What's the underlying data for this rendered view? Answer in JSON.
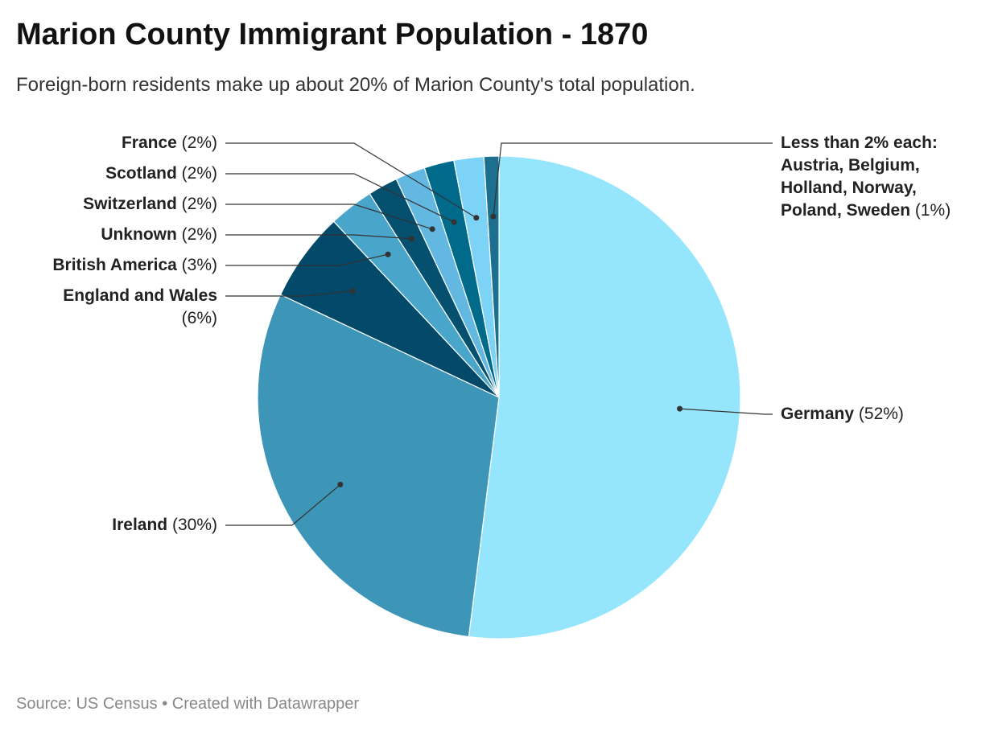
{
  "chart_data": {
    "type": "pie",
    "title": "Marion County Immigrant Population - 1870",
    "subtitle": "Foreign-born residents make up about 20% of Marion County's total population.",
    "source": "Source: US Census • Created with Datawrapper",
    "categories": [
      "Germany",
      "Ireland",
      "England and Wales",
      "British America",
      "Unknown",
      "Switzerland",
      "Scotland",
      "France",
      "Less than 2% each: Austria, Belgium, Holland, Norway, Poland, Sweden"
    ],
    "values": [
      52,
      30,
      6,
      3,
      2,
      2,
      2,
      2,
      1
    ],
    "value_labels": [
      "(52%)",
      "(30%)",
      "(6%)",
      "(3%)",
      "(2%)",
      "(2%)",
      "(2%)",
      "(2%)",
      "(1%)"
    ],
    "colors": [
      "#95e6fc",
      "#3d96b8",
      "#03496a",
      "#49a5c9",
      "#04506e",
      "#62b8e0",
      "#006a8a",
      "#7dd3f5",
      "#1c6f8e"
    ]
  }
}
